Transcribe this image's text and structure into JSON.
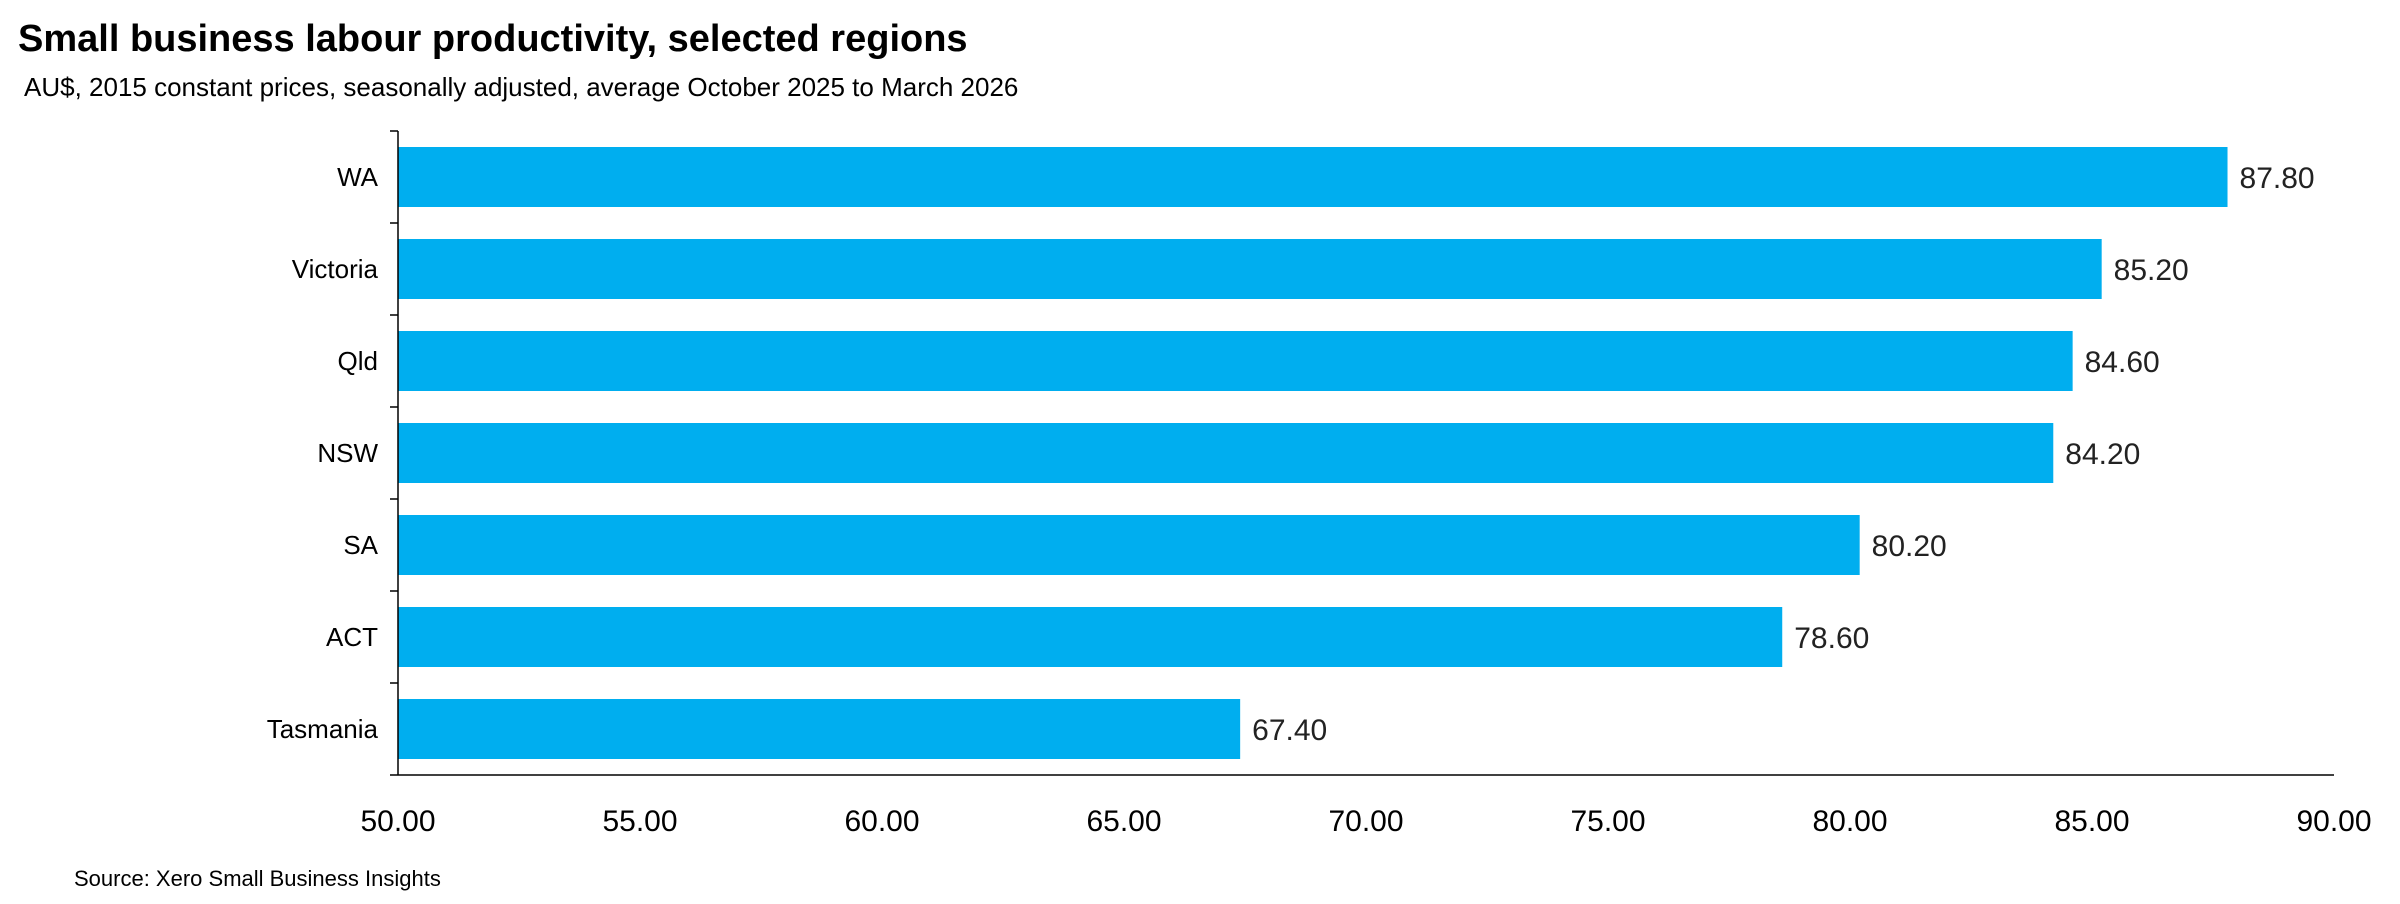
{
  "title": "Small business labour productivity, selected regions",
  "subtitle": "AU$, 2015 constant prices, seasonally adjusted, average October 2025 to March 2026",
  "source": "Source: Xero Small Business Insights",
  "chart_data": {
    "type": "bar",
    "orientation": "horizontal",
    "title": "Small business labour productivity, selected regions",
    "subtitle": "AU$, 2015 constant prices, seasonally adjusted, average October 2025 to March 2026",
    "categories": [
      "WA",
      "Victoria",
      "Qld",
      "NSW",
      "SA",
      "ACT",
      "Tasmania"
    ],
    "values": [
      87.8,
      85.2,
      84.6,
      84.2,
      80.2,
      78.6,
      67.4
    ],
    "value_labels": [
      "87.80",
      "85.20",
      "84.60",
      "84.20",
      "80.20",
      "78.60",
      "67.40"
    ],
    "xlim": [
      50,
      90
    ],
    "xticks": [
      50,
      55,
      60,
      65,
      70,
      75,
      80,
      85,
      90
    ],
    "xtick_labels": [
      "50.00",
      "55.00",
      "60.00",
      "65.00",
      "70.00",
      "75.00",
      "80.00",
      "85.00",
      "90.00"
    ],
    "xlabel": "",
    "ylabel": "",
    "grid": false,
    "legend": "none",
    "bar_color": "#00AEEF"
  }
}
